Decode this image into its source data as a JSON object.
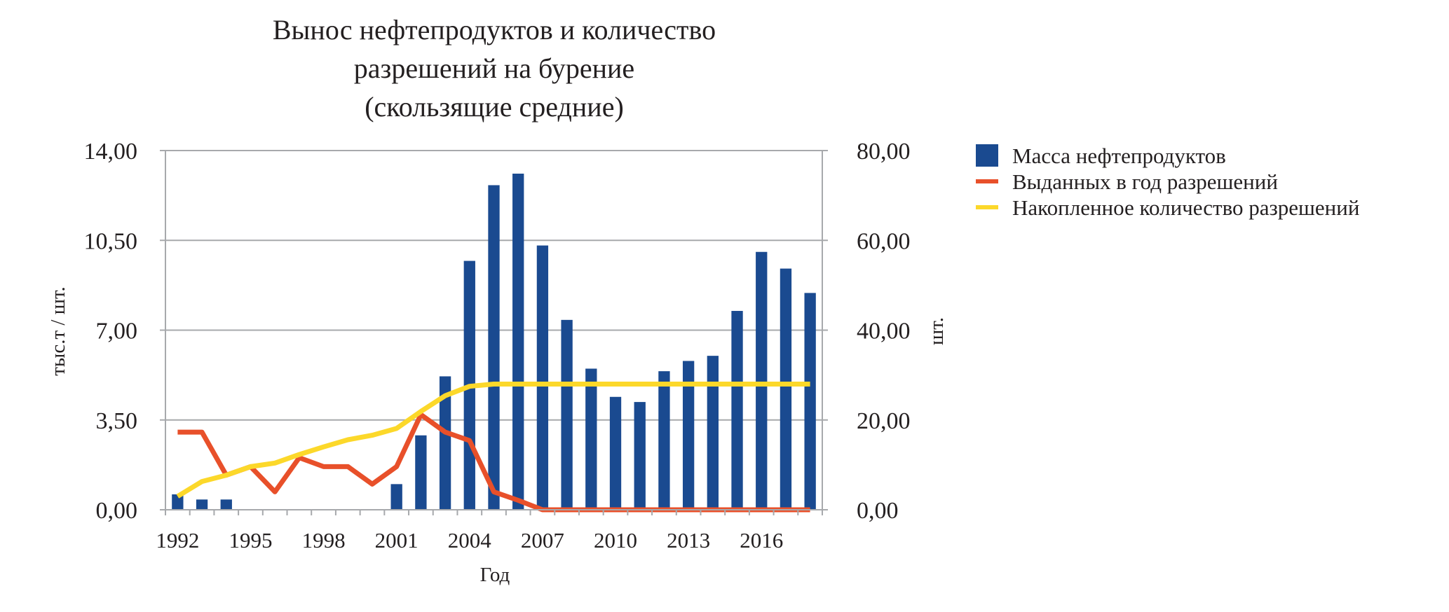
{
  "chart_data": {
    "type": "bar",
    "title_lines": [
      "Вынос нефтепродуктов и количество",
      "разрешений на бурение",
      "(скользящие средние)"
    ],
    "xlabel": "Год",
    "ylabel_left": "тыс.т / шт.",
    "ylabel_right": "шт.",
    "x": [
      1992,
      1993,
      1994,
      1995,
      1996,
      1997,
      1998,
      1999,
      2000,
      2001,
      2002,
      2003,
      2004,
      2005,
      2006,
      2007,
      2008,
      2009,
      2010,
      2011,
      2012,
      2013,
      2014,
      2015,
      2016,
      2017,
      2018
    ],
    "x_tick_labels": [
      "1992",
      "1995",
      "1998",
      "2001",
      "2004",
      "2007",
      "2010",
      "2013",
      "2016"
    ],
    "y_left_ticks": [
      "0,00",
      "3,50",
      "7,00",
      "10,50",
      "14,00"
    ],
    "y_right_ticks": [
      "0,00",
      "20,00",
      "40,00",
      "60,00",
      "80,00"
    ],
    "ylim_left": [
      0,
      14
    ],
    "ylim_right": [
      0,
      80
    ],
    "grid": true,
    "legend_position": "right",
    "series": [
      {
        "name": "Масса нефтепродуктов",
        "kind": "bar",
        "axis": "left",
        "color": "#1a4a90",
        "values": [
          0.6,
          0.4,
          0.4,
          0,
          0,
          0,
          0,
          0,
          0,
          1.0,
          2.9,
          5.2,
          9.7,
          12.65,
          13.1,
          10.3,
          7.4,
          5.5,
          4.4,
          4.2,
          5.4,
          5.8,
          6.0,
          7.75,
          10.05,
          9.4,
          8.45
        ]
      },
      {
        "name": "Выданных в год разрешений",
        "kind": "line",
        "axis": "right",
        "color": "#e8502a",
        "values": [
          17.3,
          17.3,
          7.7,
          9.6,
          4.0,
          11.6,
          9.6,
          9.6,
          5.7,
          9.6,
          21.2,
          17.3,
          15.4,
          4.0,
          2.1,
          0,
          0,
          0,
          0,
          0,
          0,
          0,
          0,
          0,
          0,
          0,
          0
        ]
      },
      {
        "name": "Накопленное количество разрешений",
        "kind": "line",
        "axis": "right",
        "color": "#fcd82a",
        "values": [
          3.0,
          6.3,
          7.7,
          9.6,
          10.4,
          12.3,
          14.0,
          15.6,
          16.6,
          18.1,
          21.9,
          25.4,
          27.5,
          28.0,
          28.0,
          28.0,
          28.0,
          28.0,
          28.0,
          28.0,
          28.0,
          28.0,
          28.0,
          28.0,
          28.0,
          28.0,
          28.0
        ]
      }
    ]
  }
}
